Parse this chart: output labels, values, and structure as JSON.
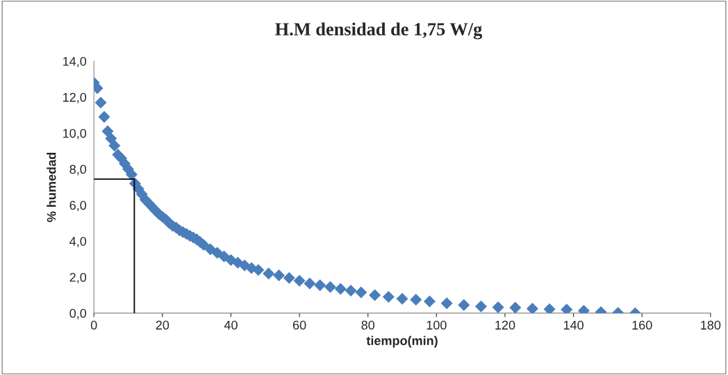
{
  "chart_data": {
    "type": "scatter",
    "title": "H.M densidad de 1,75 W/g",
    "xlabel": "tiempo(min)",
    "ylabel": "% humedad",
    "xlim": [
      0,
      180
    ],
    "xticks": [
      0,
      20,
      40,
      60,
      80,
      100,
      120,
      140,
      160,
      180
    ],
    "ylim": [
      0,
      14
    ],
    "yticks": [
      {
        "value": 0,
        "label": "0,0"
      },
      {
        "value": 2,
        "label": "2,0"
      },
      {
        "value": 4,
        "label": "4,0"
      },
      {
        "value": 6,
        "label": "6,0"
      },
      {
        "value": 8,
        "label": "8,0"
      },
      {
        "value": 10,
        "label": "10,0"
      },
      {
        "value": 12,
        "label": "12,0"
      },
      {
        "value": 14,
        "label": "14,0"
      }
    ],
    "grid": false,
    "legend": false,
    "marker": "diamond",
    "series": [
      {
        "color": "#4a7ebb",
        "x": [
          0,
          1,
          2,
          3,
          4,
          5,
          6,
          7,
          8,
          9,
          10,
          11,
          12,
          13,
          14,
          15,
          16,
          17,
          18,
          19,
          20,
          21,
          22,
          23,
          24,
          25,
          26,
          27,
          28,
          29,
          30,
          31,
          32,
          34,
          36,
          38,
          40,
          42,
          44,
          46,
          48,
          51,
          54,
          57,
          60,
          63,
          66,
          69,
          72,
          75,
          78,
          82,
          86,
          90,
          94,
          98,
          103,
          108,
          113,
          118,
          123,
          128,
          133,
          138,
          143,
          148,
          153,
          158
        ],
        "values": [
          12.8,
          12.5,
          11.7,
          10.9,
          10.1,
          9.7,
          9.3,
          8.8,
          8.6,
          8.3,
          8.0,
          7.7,
          7.2,
          6.9,
          6.6,
          6.3,
          6.1,
          5.9,
          5.7,
          5.5,
          5.35,
          5.2,
          5.0,
          4.85,
          4.75,
          4.6,
          4.5,
          4.4,
          4.3,
          4.2,
          4.1,
          3.95,
          3.8,
          3.55,
          3.35,
          3.15,
          2.95,
          2.8,
          2.65,
          2.5,
          2.4,
          2.2,
          2.1,
          1.95,
          1.8,
          1.65,
          1.55,
          1.45,
          1.35,
          1.25,
          1.15,
          1.0,
          0.9,
          0.8,
          0.75,
          0.65,
          0.55,
          0.45,
          0.37,
          0.32,
          0.3,
          0.25,
          0.22,
          0.2,
          0.13,
          0.05,
          0.02,
          0.0
        ]
      },
      {
        "type": "line",
        "color": "#000000",
        "marker": "none",
        "x": [
          0,
          11.8,
          11.8
        ],
        "values": [
          7.45,
          7.45,
          0
        ]
      }
    ]
  }
}
